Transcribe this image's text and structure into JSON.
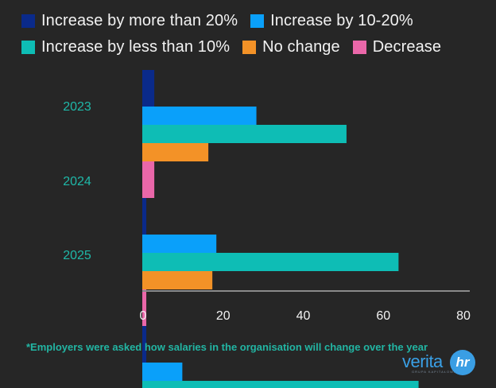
{
  "chart_data": {
    "type": "bar",
    "orientation": "horizontal",
    "title": "",
    "xlabel": "",
    "ylabel": "",
    "xlim": [
      0,
      80
    ],
    "x_ticks": [
      "0",
      "20",
      "40",
      "60",
      "80"
    ],
    "grid": false,
    "legend_position": "top",
    "categories": [
      "2023",
      "2024",
      "2025"
    ],
    "series": [
      {
        "name": "Increase by more than 20%",
        "color": "#0a2a8a",
        "values": [
          3,
          1,
          1
        ]
      },
      {
        "name": "Increase by 10-20%",
        "color": "#0aa0fa",
        "values": [
          28.5,
          18.5,
          10
        ]
      },
      {
        "name": "Increase by less than 10%",
        "color": "#0ebdb5",
        "values": [
          51,
          64,
          69
        ]
      },
      {
        "name": "No change",
        "color": "#f39227",
        "values": [
          16.5,
          17.5,
          null
        ]
      },
      {
        "name": "Decrease",
        "color": "#ea67a9",
        "values": [
          3,
          1,
          null
        ]
      }
    ]
  },
  "legend": {
    "rows": [
      [
        {
          "label": "Increase by more than 20%",
          "color": "#0a2a8a"
        },
        {
          "label": "Increase by 10-20%",
          "color": "#0aa0fa"
        }
      ],
      [
        {
          "label": "Increase by less than 10%",
          "color": "#0ebdb5"
        },
        {
          "label": "No change",
          "color": "#f39227"
        },
        {
          "label": "Decrease",
          "color": "#ea67a9"
        }
      ]
    ]
  },
  "footnote": "*Employers were asked how salaries in the organisation will change over the year",
  "logo": {
    "text": "verita",
    "badge": "hr",
    "subtext": "GRUPA KAPITAŁOWA"
  },
  "colors": {
    "background": "#262626",
    "year_label": "#1fb8a8",
    "tick_label": "#f2f2f2",
    "axis_line": "#8a8a8a"
  }
}
